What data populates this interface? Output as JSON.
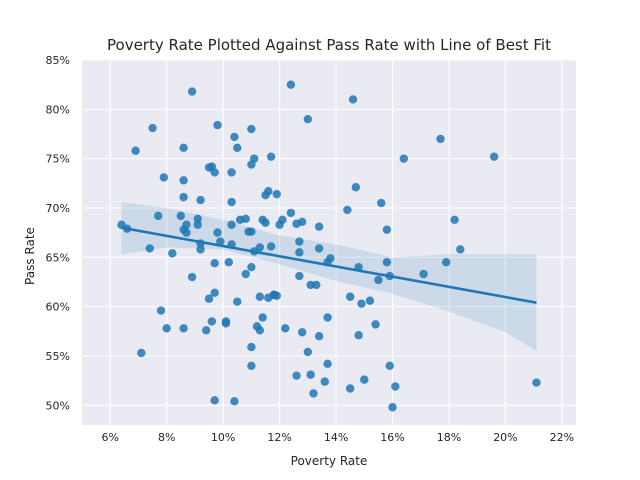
{
  "chart_data": {
    "type": "scatter",
    "title": "Poverty Rate Plotted Against Pass Rate with Line of Best Fit",
    "xlabel": "Poverty Rate",
    "ylabel": "Pass Rate",
    "xlim": [
      0.05,
      0.225
    ],
    "ylim": [
      0.48,
      0.85
    ],
    "x_ticks": [
      {
        "value": 0.06,
        "label": "6%"
      },
      {
        "value": 0.08,
        "label": "8%"
      },
      {
        "value": 0.1,
        "label": "10%"
      },
      {
        "value": 0.12,
        "label": "12%"
      },
      {
        "value": 0.14,
        "label": "14%"
      },
      {
        "value": 0.16,
        "label": "16%"
      },
      {
        "value": 0.18,
        "label": "18%"
      },
      {
        "value": 0.2,
        "label": "20%"
      },
      {
        "value": 0.22,
        "label": "22%"
      }
    ],
    "y_ticks": [
      {
        "value": 0.5,
        "label": "50%"
      },
      {
        "value": 0.55,
        "label": "55%"
      },
      {
        "value": 0.6,
        "label": "60%"
      },
      {
        "value": 0.65,
        "label": "65%"
      },
      {
        "value": 0.7,
        "label": "70%"
      },
      {
        "value": 0.75,
        "label": "75%"
      },
      {
        "value": 0.8,
        "label": "80%"
      },
      {
        "value": 0.85,
        "label": "85%"
      }
    ],
    "grid": true,
    "colors": {
      "background": "#eaeaf2",
      "grid": "#ffffff",
      "points": "#1f77b4",
      "fit_line": "#1f77b4",
      "confidence_band": "#1f77b4"
    },
    "points": [
      [
        0.064,
        0.683
      ],
      [
        0.066,
        0.679
      ],
      [
        0.069,
        0.758
      ],
      [
        0.071,
        0.553
      ],
      [
        0.074,
        0.659
      ],
      [
        0.075,
        0.781
      ],
      [
        0.077,
        0.692
      ],
      [
        0.078,
        0.596
      ],
      [
        0.079,
        0.731
      ],
      [
        0.08,
        0.578
      ],
      [
        0.082,
        0.654
      ],
      [
        0.085,
        0.692
      ],
      [
        0.086,
        0.761
      ],
      [
        0.086,
        0.728
      ],
      [
        0.086,
        0.711
      ],
      [
        0.086,
        0.578
      ],
      [
        0.087,
        0.683
      ],
      [
        0.087,
        0.675
      ],
      [
        0.086,
        0.678
      ],
      [
        0.089,
        0.818
      ],
      [
        0.089,
        0.63
      ],
      [
        0.091,
        0.689
      ],
      [
        0.091,
        0.683
      ],
      [
        0.092,
        0.708
      ],
      [
        0.092,
        0.664
      ],
      [
        0.092,
        0.658
      ],
      [
        0.094,
        0.576
      ],
      [
        0.095,
        0.741
      ],
      [
        0.095,
        0.608
      ],
      [
        0.096,
        0.742
      ],
      [
        0.096,
        0.585
      ],
      [
        0.097,
        0.736
      ],
      [
        0.097,
        0.644
      ],
      [
        0.097,
        0.614
      ],
      [
        0.097,
        0.505
      ],
      [
        0.098,
        0.784
      ],
      [
        0.098,
        0.675
      ],
      [
        0.099,
        0.666
      ],
      [
        0.101,
        0.585
      ],
      [
        0.101,
        0.583
      ],
      [
        0.102,
        0.645
      ],
      [
        0.103,
        0.736
      ],
      [
        0.103,
        0.706
      ],
      [
        0.103,
        0.683
      ],
      [
        0.103,
        0.663
      ],
      [
        0.104,
        0.772
      ],
      [
        0.104,
        0.504
      ],
      [
        0.105,
        0.761
      ],
      [
        0.105,
        0.605
      ],
      [
        0.106,
        0.688
      ],
      [
        0.108,
        0.689
      ],
      [
        0.108,
        0.633
      ],
      [
        0.109,
        0.676
      ],
      [
        0.11,
        0.78
      ],
      [
        0.11,
        0.744
      ],
      [
        0.11,
        0.676
      ],
      [
        0.11,
        0.64
      ],
      [
        0.11,
        0.559
      ],
      [
        0.11,
        0.54
      ],
      [
        0.111,
        0.75
      ],
      [
        0.111,
        0.656
      ],
      [
        0.112,
        0.58
      ],
      [
        0.113,
        0.66
      ],
      [
        0.113,
        0.61
      ],
      [
        0.113,
        0.576
      ],
      [
        0.114,
        0.688
      ],
      [
        0.114,
        0.589
      ],
      [
        0.115,
        0.713
      ],
      [
        0.115,
        0.685
      ],
      [
        0.116,
        0.717
      ],
      [
        0.116,
        0.609
      ],
      [
        0.117,
        0.752
      ],
      [
        0.117,
        0.661
      ],
      [
        0.118,
        0.612
      ],
      [
        0.118,
        0.612
      ],
      [
        0.119,
        0.714
      ],
      [
        0.119,
        0.611
      ],
      [
        0.12,
        0.683
      ],
      [
        0.121,
        0.688
      ],
      [
        0.122,
        0.578
      ],
      [
        0.124,
        0.825
      ],
      [
        0.124,
        0.695
      ],
      [
        0.126,
        0.684
      ],
      [
        0.126,
        0.53
      ],
      [
        0.127,
        0.666
      ],
      [
        0.127,
        0.655
      ],
      [
        0.127,
        0.631
      ],
      [
        0.128,
        0.686
      ],
      [
        0.128,
        0.574
      ],
      [
        0.13,
        0.79
      ],
      [
        0.13,
        0.554
      ],
      [
        0.131,
        0.622
      ],
      [
        0.131,
        0.531
      ],
      [
        0.132,
        0.512
      ],
      [
        0.133,
        0.622
      ],
      [
        0.134,
        0.681
      ],
      [
        0.134,
        0.659
      ],
      [
        0.134,
        0.57
      ],
      [
        0.136,
        0.524
      ],
      [
        0.137,
        0.645
      ],
      [
        0.137,
        0.589
      ],
      [
        0.137,
        0.542
      ],
      [
        0.138,
        0.649
      ],
      [
        0.144,
        0.698
      ],
      [
        0.145,
        0.61
      ],
      [
        0.145,
        0.517
      ],
      [
        0.146,
        0.81
      ],
      [
        0.147,
        0.721
      ],
      [
        0.148,
        0.64
      ],
      [
        0.148,
        0.571
      ],
      [
        0.149,
        0.603
      ],
      [
        0.15,
        0.526
      ],
      [
        0.152,
        0.606
      ],
      [
        0.154,
        0.582
      ],
      [
        0.155,
        0.627
      ],
      [
        0.156,
        0.705
      ],
      [
        0.158,
        0.678
      ],
      [
        0.158,
        0.645
      ],
      [
        0.159,
        0.631
      ],
      [
        0.159,
        0.54
      ],
      [
        0.16,
        0.498
      ],
      [
        0.161,
        0.519
      ],
      [
        0.164,
        0.75
      ],
      [
        0.171,
        0.633
      ],
      [
        0.177,
        0.77
      ],
      [
        0.179,
        0.645
      ],
      [
        0.182,
        0.688
      ],
      [
        0.184,
        0.658
      ],
      [
        0.196,
        0.752
      ],
      [
        0.211,
        0.523
      ]
    ],
    "fit_line": {
      "x": [
        0.064,
        0.211
      ],
      "y": [
        0.68,
        0.604
      ]
    },
    "confidence_band": {
      "x": [
        0.064,
        0.08,
        0.1,
        0.12,
        0.14,
        0.16,
        0.18,
        0.2,
        0.211
      ],
      "lower": [
        0.653,
        0.66,
        0.658,
        0.643,
        0.626,
        0.613,
        0.595,
        0.574,
        0.555
      ],
      "upper": [
        0.706,
        0.7,
        0.688,
        0.672,
        0.663,
        0.65,
        0.653,
        0.653,
        0.653
      ]
    }
  }
}
